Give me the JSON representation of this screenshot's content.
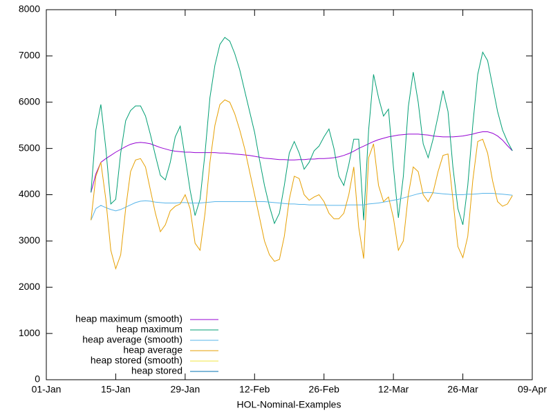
{
  "chart_data": {
    "type": "line",
    "x_label": "HOL-Nominal-Examples",
    "x": [
      "10-Jan",
      "11-Jan",
      "12-Jan",
      "13-Jan",
      "14-Jan",
      "15-Jan",
      "16-Jan",
      "17-Jan",
      "18-Jan",
      "19-Jan",
      "20-Jan",
      "21-Jan",
      "22-Jan",
      "23-Jan",
      "24-Jan",
      "25-Jan",
      "26-Jan",
      "27-Jan",
      "28-Jan",
      "29-Jan",
      "30-Jan",
      "31-Jan",
      "01-Feb",
      "02-Feb",
      "03-Feb",
      "04-Feb",
      "05-Feb",
      "06-Feb",
      "07-Feb",
      "08-Feb",
      "09-Feb",
      "10-Feb",
      "11-Feb",
      "12-Feb",
      "13-Feb",
      "14-Feb",
      "15-Feb",
      "16-Feb",
      "17-Feb",
      "18-Feb",
      "19-Feb",
      "20-Feb",
      "21-Feb",
      "22-Feb",
      "23-Feb",
      "24-Feb",
      "25-Feb",
      "26-Feb",
      "27-Feb",
      "28-Feb",
      "01-Mar",
      "02-Mar",
      "03-Mar",
      "04-Mar",
      "05-Mar",
      "06-Mar",
      "07-Mar",
      "08-Mar",
      "09-Mar",
      "10-Mar",
      "11-Mar",
      "12-Mar",
      "13-Mar",
      "14-Mar",
      "15-Mar",
      "16-Mar",
      "17-Mar",
      "18-Mar",
      "19-Mar",
      "20-Mar",
      "21-Mar",
      "22-Mar",
      "23-Mar",
      "24-Mar",
      "25-Mar",
      "26-Mar",
      "27-Mar",
      "28-Mar",
      "29-Mar",
      "30-Mar",
      "31-Mar",
      "01-Apr",
      "02-Apr",
      "03-Apr",
      "04-Apr",
      "05-Apr"
    ],
    "series": [
      {
        "name": "heap maximum (smooth)",
        "color": "#9400d3",
        "values": [
          4050,
          4450,
          4700,
          4780,
          4850,
          4920,
          4980,
          5040,
          5090,
          5120,
          5130,
          5120,
          5100,
          5060,
          5020,
          4990,
          4960,
          4940,
          4930,
          4920,
          4920,
          4910,
          4910,
          4910,
          4910,
          4910,
          4900,
          4900,
          4890,
          4880,
          4870,
          4860,
          4850,
          4830,
          4810,
          4790,
          4780,
          4770,
          4760,
          4760,
          4750,
          4750,
          4760,
          4760,
          4770,
          4770,
          4780,
          4780,
          4790,
          4800,
          4820,
          4850,
          4890,
          4940,
          5000,
          5050,
          5100,
          5150,
          5190,
          5220,
          5250,
          5270,
          5290,
          5300,
          5310,
          5310,
          5310,
          5300,
          5290,
          5270,
          5260,
          5250,
          5250,
          5250,
          5260,
          5270,
          5290,
          5310,
          5340,
          5360,
          5360,
          5330,
          5270,
          5180,
          5060,
          4950
        ]
      },
      {
        "name": "heap maximum",
        "color": "#009e73",
        "values": [
          4050,
          5400,
          5950,
          5000,
          3800,
          3900,
          4900,
          5600,
          5820,
          5920,
          5920,
          5700,
          5300,
          4850,
          4420,
          4320,
          4700,
          5250,
          5480,
          4800,
          4100,
          3550,
          3900,
          4900,
          6100,
          6800,
          7250,
          7400,
          7320,
          7050,
          6700,
          6250,
          5800,
          5350,
          4750,
          4200,
          3750,
          3380,
          3600,
          4200,
          4900,
          5150,
          4900,
          4550,
          4700,
          4950,
          5050,
          5250,
          5420,
          5000,
          4400,
          4200,
          4650,
          5200,
          5200,
          3450,
          5400,
          6600,
          6100,
          5700,
          5850,
          4600,
          3500,
          4400,
          5900,
          6650,
          6000,
          5100,
          4800,
          5200,
          5700,
          6250,
          5800,
          4600,
          3700,
          3350,
          4200,
          5500,
          6600,
          7080,
          6900,
          6350,
          5800,
          5400,
          5150,
          4950
        ]
      },
      {
        "name": "heap average (smooth)",
        "color": "#56b4e9",
        "values": [
          3450,
          3700,
          3770,
          3720,
          3680,
          3650,
          3680,
          3730,
          3780,
          3830,
          3860,
          3870,
          3860,
          3840,
          3830,
          3820,
          3820,
          3820,
          3830,
          3830,
          3820,
          3820,
          3820,
          3830,
          3840,
          3850,
          3850,
          3850,
          3850,
          3850,
          3850,
          3850,
          3850,
          3850,
          3850,
          3850,
          3840,
          3830,
          3820,
          3810,
          3800,
          3800,
          3790,
          3790,
          3780,
          3780,
          3780,
          3780,
          3770,
          3770,
          3770,
          3770,
          3780,
          3780,
          3780,
          3780,
          3800,
          3810,
          3820,
          3840,
          3860,
          3880,
          3900,
          3930,
          3960,
          3990,
          4020,
          4040,
          4050,
          4040,
          4030,
          4020,
          4010,
          4000,
          4000,
          4000,
          4010,
          4010,
          4020,
          4030,
          4030,
          4030,
          4020,
          4010,
          4000,
          3990
        ]
      },
      {
        "name": "heap average",
        "color": "#e69f00",
        "values": [
          3450,
          4400,
          4700,
          3900,
          2800,
          2400,
          2700,
          3700,
          4500,
          4750,
          4780,
          4600,
          4100,
          3600,
          3200,
          3350,
          3650,
          3750,
          3800,
          4000,
          3700,
          2950,
          2800,
          3600,
          4700,
          5500,
          5950,
          6050,
          6000,
          5750,
          5400,
          5000,
          4500,
          4000,
          3500,
          3000,
          2700,
          2560,
          2600,
          3100,
          3900,
          4400,
          4350,
          4000,
          3880,
          3950,
          4000,
          3850,
          3600,
          3480,
          3480,
          3600,
          4000,
          4600,
          3300,
          2620,
          4800,
          5100,
          4200,
          3850,
          3950,
          3500,
          2800,
          3000,
          4000,
          4600,
          4500,
          4000,
          3850,
          4050,
          4500,
          4850,
          4880,
          3900,
          2880,
          2640,
          3100,
          4300,
          5150,
          5200,
          4900,
          4300,
          3850,
          3750,
          3800,
          3980
        ]
      },
      {
        "name": "heap stored (smooth)",
        "color": "#f0e442",
        "values": [
          null,
          null,
          null,
          null,
          null,
          null,
          null,
          null,
          null,
          null,
          null,
          null,
          null,
          null,
          null,
          null,
          null,
          null,
          null,
          null,
          null,
          null,
          null,
          null,
          null,
          null,
          null,
          null,
          null,
          null,
          null,
          null,
          null,
          null,
          null,
          null,
          null,
          null,
          null,
          null,
          null,
          null,
          null,
          null,
          null,
          null,
          null,
          null,
          null,
          null,
          null,
          null,
          null,
          null,
          null,
          null,
          null,
          null,
          null,
          null,
          null,
          null,
          null,
          null,
          null,
          null,
          null,
          null,
          null,
          null,
          null,
          null,
          null,
          null,
          null,
          null,
          null,
          null,
          null,
          null,
          null,
          null,
          null,
          null,
          null,
          null
        ]
      },
      {
        "name": "heap stored",
        "color": "#0072b2",
        "values": [
          null,
          null,
          null,
          null,
          null,
          null,
          null,
          null,
          null,
          null,
          null,
          null,
          null,
          null,
          null,
          null,
          null,
          null,
          null,
          null,
          null,
          null,
          null,
          null,
          null,
          null,
          null,
          null,
          null,
          null,
          null,
          null,
          null,
          null,
          null,
          null,
          null,
          null,
          null,
          null,
          null,
          null,
          null,
          null,
          null,
          null,
          null,
          null,
          null,
          null,
          null,
          null,
          null,
          null,
          null,
          null,
          null,
          null,
          null,
          null,
          null,
          null,
          null,
          null,
          null,
          null,
          null,
          null,
          null,
          null,
          null,
          null,
          null,
          null,
          null,
          null,
          null,
          null,
          null,
          null,
          null,
          null,
          null,
          null,
          null,
          null
        ]
      }
    ],
    "xlim": [
      "01-Jan",
      "09-Apr"
    ],
    "xticks": [
      "01-Jan",
      "15-Jan",
      "29-Jan",
      "12-Feb",
      "26-Feb",
      "12-Mar",
      "26-Mar",
      "09-Apr"
    ],
    "ylim": [
      0,
      8000
    ],
    "yticks": [
      0,
      1000,
      2000,
      3000,
      4000,
      5000,
      6000,
      7000,
      8000
    ],
    "legend": "bottom-left"
  }
}
